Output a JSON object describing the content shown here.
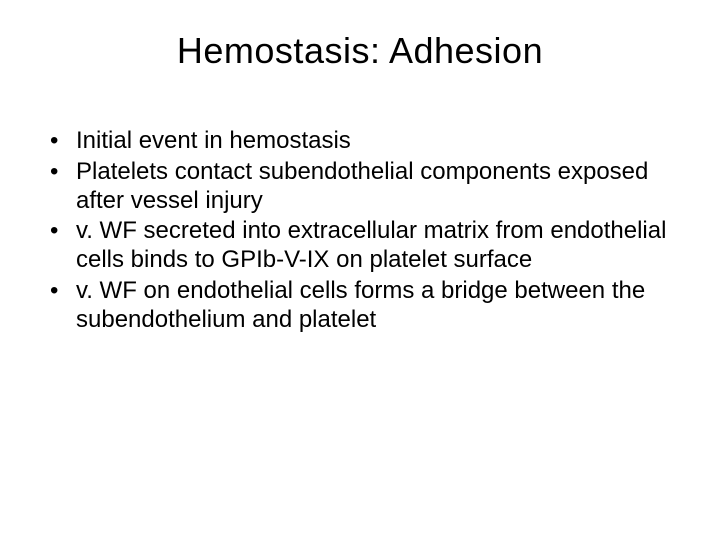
{
  "slide": {
    "title": "Hemostasis: Adhesion",
    "bullets": [
      "Initial event in hemostasis",
      "Platelets contact subendothelial components exposed after vessel injury",
      "v. WF secreted into extracellular matrix from endothelial cells binds to GPIb-V-IX on platelet surface",
      "v. WF on endothelial cells forms a bridge between the subendothelium and platelet"
    ],
    "styling": {
      "background_color": "#ffffff",
      "text_color": "#000000",
      "title_fontsize": 36,
      "title_weight": 400,
      "body_fontsize": 24,
      "font_family": "Arial",
      "slide_width": 720,
      "slide_height": 540
    }
  }
}
